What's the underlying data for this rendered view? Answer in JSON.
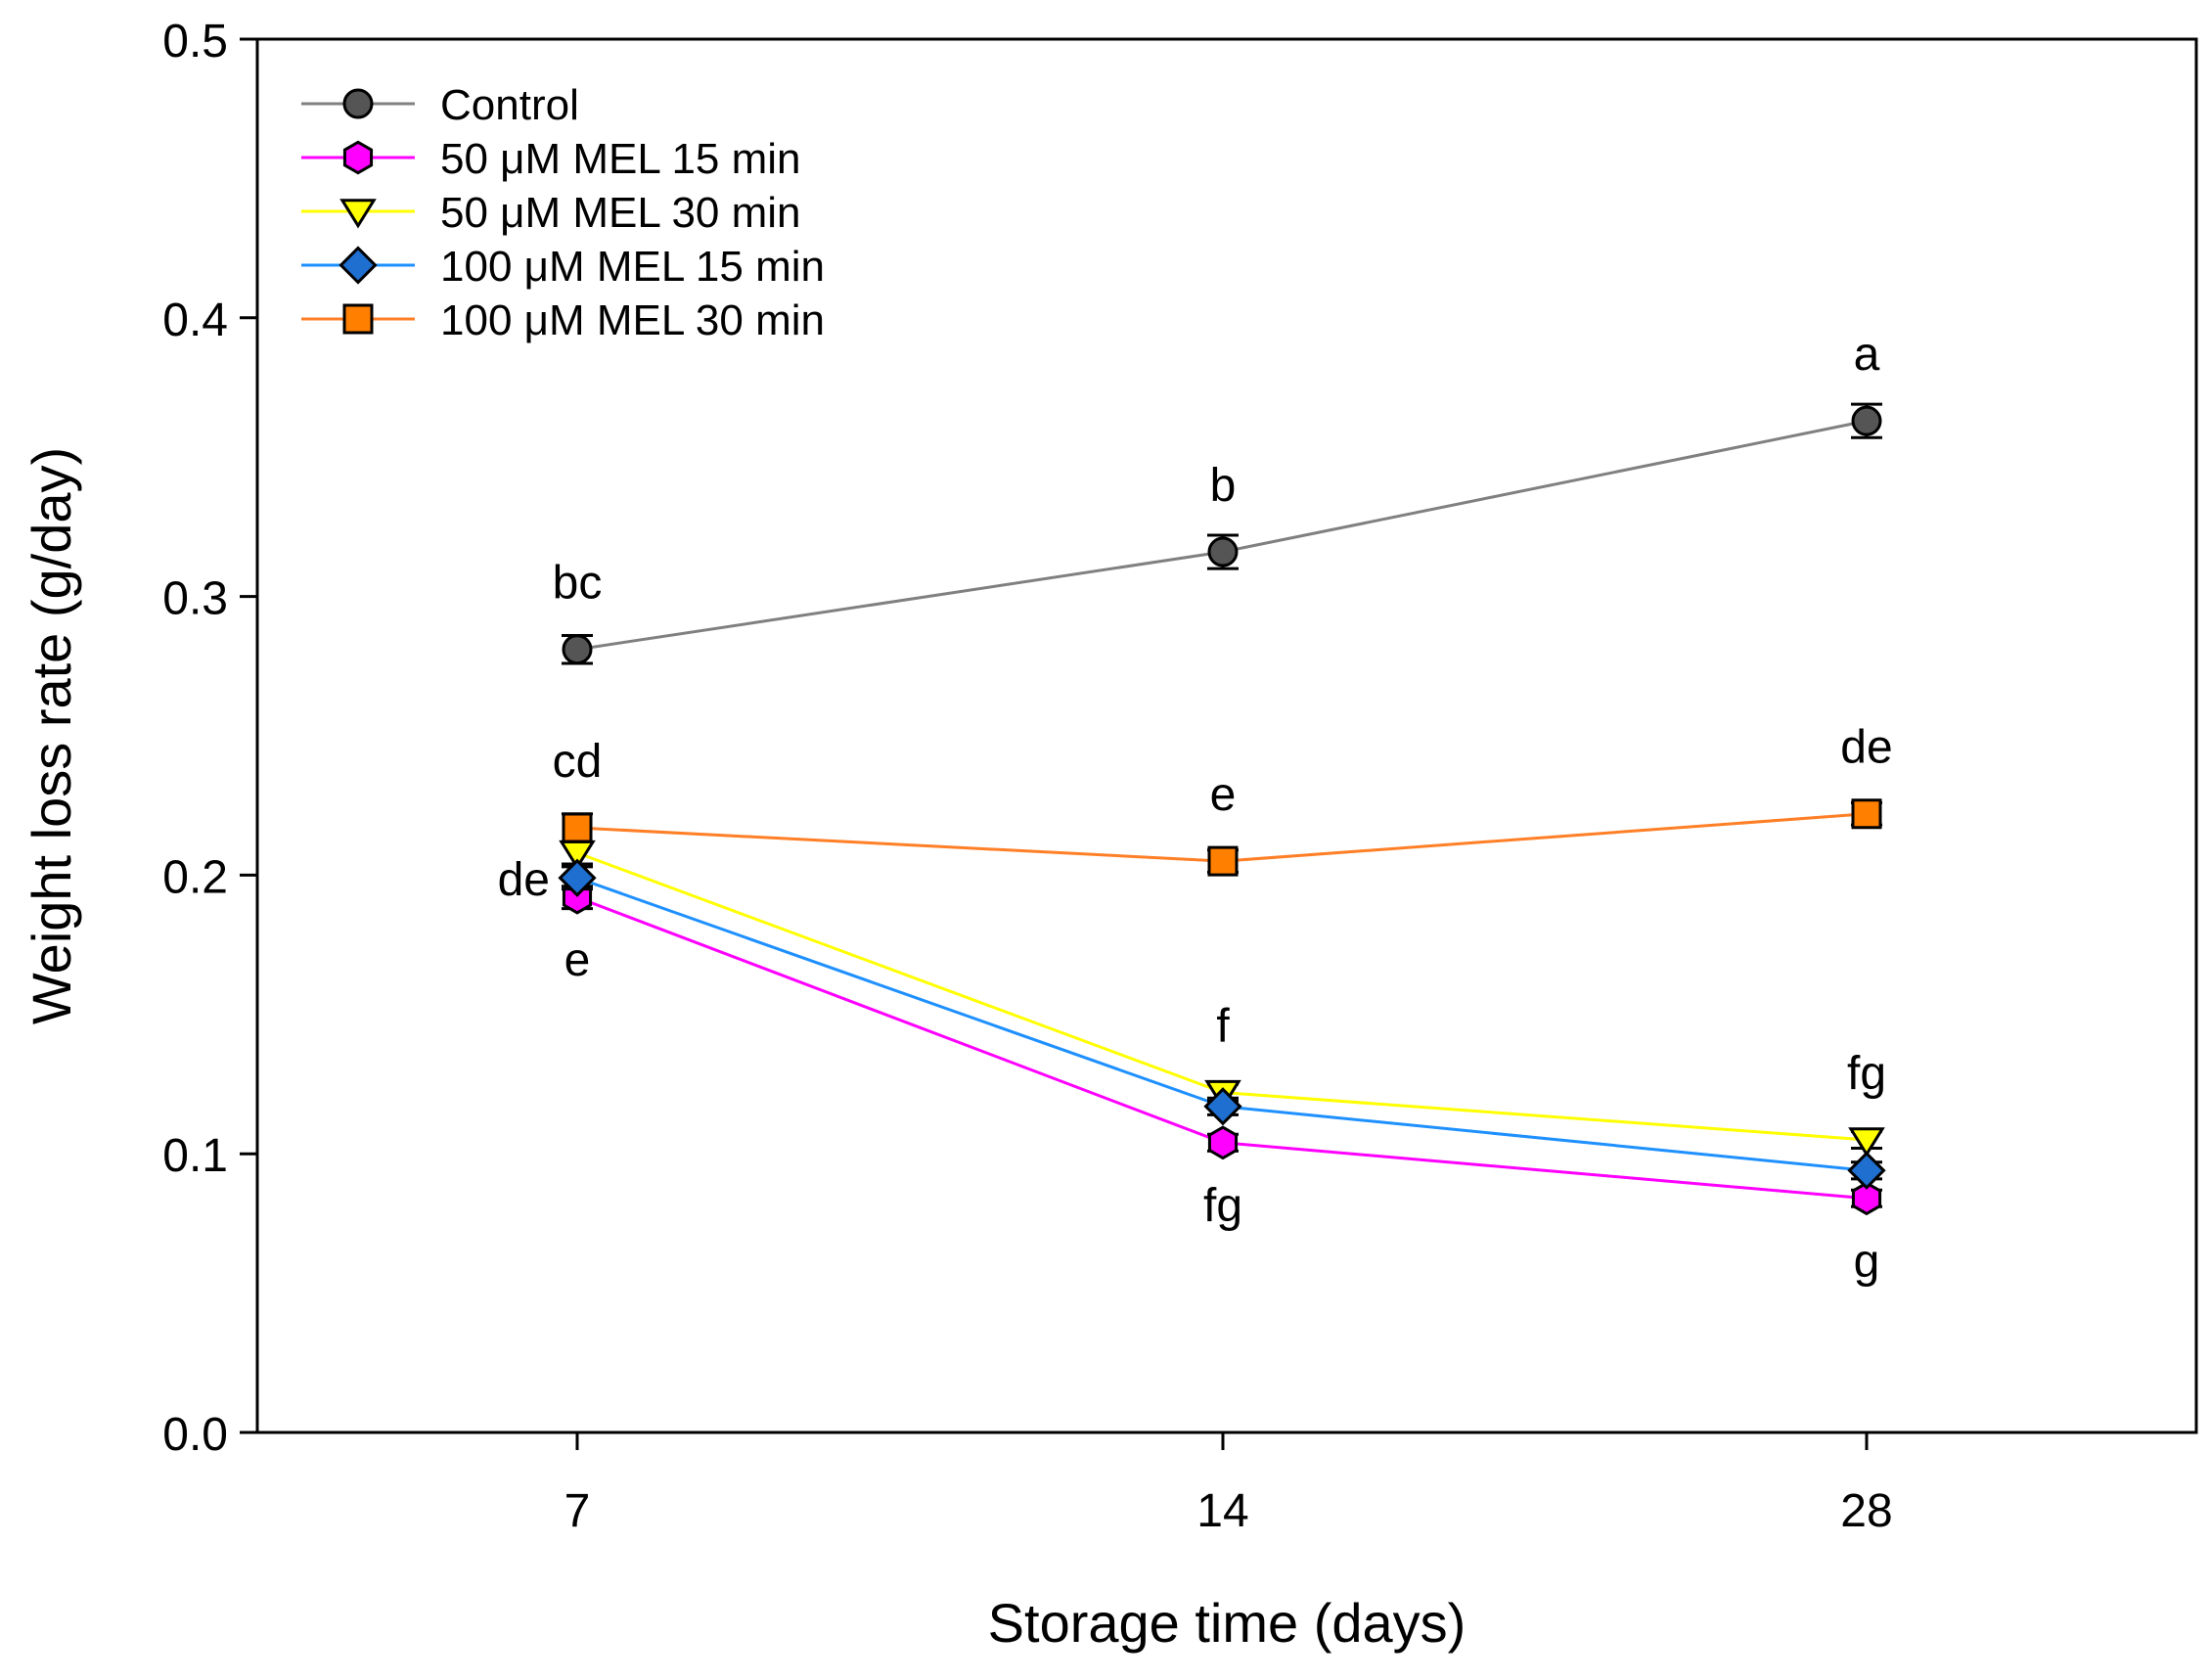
{
  "chart_data": {
    "type": "line",
    "title": "",
    "xlabel": "Storage time (days)",
    "ylabel": "Weight loss rate (g/day)",
    "categories": [
      "7",
      "14",
      "28"
    ],
    "ylim": [
      0,
      0.5
    ],
    "yticks": [
      "0.0",
      "0.1",
      "0.2",
      "0.3",
      "0.4",
      "0.5"
    ],
    "grid": false,
    "legend_position": "top-left",
    "series": [
      {
        "name": "Control",
        "color": "#808080",
        "marker": "circle",
        "marker_fill": "#555555",
        "values": [
          0.281,
          0.316,
          0.363
        ],
        "errors": [
          0.005,
          0.006,
          0.006
        ],
        "letters": [
          "bc",
          "b",
          "a"
        ],
        "letter_pos": [
          "above",
          "above",
          "above"
        ]
      },
      {
        "name": "50 μM MEL 15 min",
        "color": "#ff00ff",
        "marker": "hexagon",
        "marker_fill": "#ff00ff",
        "values": [
          0.192,
          0.104,
          0.084
        ],
        "errors": [
          0.004,
          0.003,
          0.003
        ],
        "letters": [
          "e",
          "fg",
          "g"
        ],
        "letter_pos": [
          "below",
          "below",
          "below"
        ]
      },
      {
        "name": "50 μM MEL 30 min",
        "color": "#ffff00",
        "marker": "triangle-down",
        "marker_fill": "#ffff00",
        "values": [
          0.208,
          0.122,
          0.105
        ],
        "errors": [
          0.004,
          0.003,
          0.003
        ],
        "letters": [
          "",
          "f",
          "fg"
        ],
        "letter_pos": [
          "",
          "above",
          "above"
        ]
      },
      {
        "name": "100 μM MEL 15 min",
        "color": "#1e90ff",
        "marker": "diamond",
        "marker_fill": "#1f6fd1",
        "values": [
          0.199,
          0.117,
          0.094
        ],
        "errors": [
          0.004,
          0.003,
          0.003
        ],
        "letters": [
          "de",
          "",
          ""
        ],
        "letter_pos": [
          "left",
          "",
          ""
        ]
      },
      {
        "name": "100 μM MEL 30 min",
        "color": "#ff7f27",
        "marker": "square",
        "marker_fill": "#ff7f00",
        "values": [
          0.217,
          0.205,
          0.222
        ],
        "errors": [
          0.005,
          0.004,
          0.004
        ],
        "letters": [
          "cd",
          "e",
          "de"
        ],
        "letter_pos": [
          "above",
          "above",
          "above"
        ]
      }
    ]
  }
}
